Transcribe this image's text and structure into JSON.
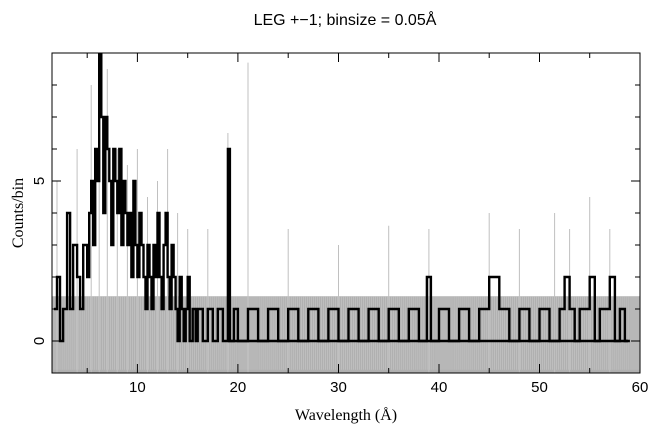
{
  "chart_data": {
    "type": "line",
    "title": "LEG +−1; binsize = 0.05Å",
    "xlabel": "Wavelength (Å)",
    "ylabel": "Counts/bin",
    "xlim": [
      1.5,
      60
    ],
    "ylim": [
      -1,
      9
    ],
    "x_ticks": [
      10,
      20,
      30,
      40,
      50,
      60
    ],
    "y_ticks": [
      0,
      5
    ],
    "grid": false,
    "binsize": 0.05,
    "series": [
      {
        "role": "uncertainty",
        "color": "#b0b0b0",
        "band_center": 0,
        "band_halfwidth": [
          [
            1.5,
            1.4
          ],
          [
            20,
            1.4
          ],
          [
            20.1,
            1.4
          ],
          [
            60,
            1.4
          ]
        ],
        "upper_spikes": [
          [
            2,
            5
          ],
          [
            4,
            6
          ],
          [
            5.4,
            8
          ],
          [
            6.2,
            8.9
          ],
          [
            7,
            8.5
          ],
          [
            8,
            6
          ],
          [
            9,
            5.5
          ],
          [
            10,
            6
          ],
          [
            11,
            4.5
          ],
          [
            12,
            5
          ],
          [
            13,
            6
          ],
          [
            14,
            4
          ],
          [
            15,
            3.5
          ],
          [
            17,
            3.5
          ],
          [
            19,
            6.5
          ],
          [
            21,
            8.7
          ],
          [
            25,
            3.5
          ],
          [
            30,
            3
          ],
          [
            35,
            3.6
          ],
          [
            39,
            3.5
          ],
          [
            45,
            4
          ],
          [
            48,
            3.5
          ],
          [
            51.5,
            4
          ],
          [
            53,
            3.5
          ],
          [
            55,
            4.5
          ],
          [
            57,
            3.5
          ]
        ]
      },
      {
        "role": "counts",
        "color": "#000000",
        "points": [
          [
            1.7,
            1
          ],
          [
            2.0,
            2
          ],
          [
            2.3,
            0
          ],
          [
            2.6,
            1
          ],
          [
            3.0,
            4
          ],
          [
            3.3,
            1
          ],
          [
            3.6,
            3
          ],
          [
            4.0,
            2
          ],
          [
            4.3,
            1
          ],
          [
            4.6,
            3
          ],
          [
            5.0,
            2
          ],
          [
            5.2,
            4
          ],
          [
            5.4,
            5
          ],
          [
            5.6,
            3
          ],
          [
            5.8,
            6
          ],
          [
            6.0,
            5
          ],
          [
            6.2,
            9
          ],
          [
            6.4,
            7
          ],
          [
            6.6,
            4
          ],
          [
            6.8,
            7
          ],
          [
            7.0,
            6
          ],
          [
            7.2,
            5
          ],
          [
            7.4,
            3
          ],
          [
            7.6,
            6
          ],
          [
            7.8,
            5
          ],
          [
            8.0,
            4
          ],
          [
            8.2,
            6
          ],
          [
            8.4,
            3
          ],
          [
            8.6,
            5
          ],
          [
            8.8,
            4
          ],
          [
            9.0,
            3
          ],
          [
            9.2,
            4
          ],
          [
            9.4,
            2
          ],
          [
            9.6,
            5
          ],
          [
            9.8,
            3
          ],
          [
            10.0,
            2
          ],
          [
            10.2,
            4
          ],
          [
            10.4,
            3
          ],
          [
            10.6,
            2
          ],
          [
            10.8,
            1
          ],
          [
            11.0,
            3
          ],
          [
            11.2,
            2
          ],
          [
            11.4,
            1
          ],
          [
            11.6,
            3
          ],
          [
            11.8,
            2
          ],
          [
            12.0,
            4
          ],
          [
            12.2,
            2
          ],
          [
            12.4,
            1
          ],
          [
            12.6,
            3
          ],
          [
            12.8,
            4
          ],
          [
            13.0,
            2
          ],
          [
            13.2,
            1
          ],
          [
            13.4,
            3
          ],
          [
            13.6,
            2
          ],
          [
            13.8,
            1
          ],
          [
            14.0,
            0
          ],
          [
            14.2,
            2
          ],
          [
            14.4,
            1
          ],
          [
            14.6,
            0
          ],
          [
            14.8,
            1
          ],
          [
            15.0,
            2
          ],
          [
            15.2,
            0
          ],
          [
            15.5,
            1
          ],
          [
            15.8,
            0
          ],
          [
            16.0,
            1
          ],
          [
            16.5,
            0
          ],
          [
            17.0,
            1
          ],
          [
            17.5,
            0
          ],
          [
            18.0,
            1
          ],
          [
            18.5,
            0
          ],
          [
            19.0,
            6
          ],
          [
            19.2,
            0
          ],
          [
            19.6,
            1
          ],
          [
            20.0,
            0
          ],
          [
            21.0,
            1
          ],
          [
            22.0,
            0
          ],
          [
            23.0,
            1
          ],
          [
            24.0,
            0
          ],
          [
            25.0,
            1
          ],
          [
            26.0,
            0
          ],
          [
            27.0,
            1
          ],
          [
            28.0,
            0
          ],
          [
            29.0,
            1
          ],
          [
            30.0,
            0
          ],
          [
            31.0,
            1
          ],
          [
            32.0,
            0
          ],
          [
            33.0,
            1
          ],
          [
            34.0,
            0
          ],
          [
            35.0,
            1
          ],
          [
            36.0,
            0
          ],
          [
            37.0,
            1
          ],
          [
            38.0,
            0
          ],
          [
            38.8,
            2
          ],
          [
            39.2,
            0
          ],
          [
            40.0,
            1
          ],
          [
            41.0,
            0
          ],
          [
            42.0,
            1
          ],
          [
            43.0,
            0
          ],
          [
            44.0,
            1
          ],
          [
            45.0,
            2
          ],
          [
            46.0,
            1
          ],
          [
            47.0,
            0
          ],
          [
            48.0,
            1
          ],
          [
            49.0,
            0
          ],
          [
            50.0,
            1
          ],
          [
            51.0,
            0
          ],
          [
            52.0,
            1
          ],
          [
            52.5,
            2
          ],
          [
            53.0,
            1
          ],
          [
            53.5,
            0
          ],
          [
            54.0,
            1
          ],
          [
            55.0,
            2
          ],
          [
            55.5,
            0
          ],
          [
            56.0,
            1
          ],
          [
            57.0,
            2
          ],
          [
            57.5,
            0
          ],
          [
            58.0,
            1
          ],
          [
            58.5,
            0
          ]
        ]
      }
    ]
  }
}
